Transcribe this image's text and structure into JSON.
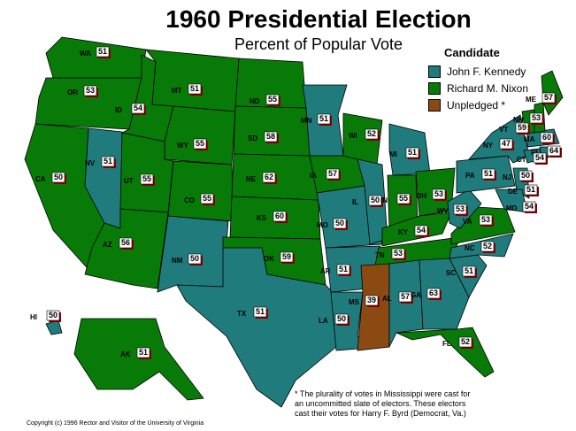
{
  "title": "1960 Presidential Election",
  "subtitle": "Percent of Popular Vote",
  "legend": {
    "heading": "Candidate",
    "items": [
      {
        "label": "John F. Kennedy",
        "color": "#1f7b7c"
      },
      {
        "label": "Richard M. Nixon",
        "color": "#087a08"
      },
      {
        "label": "Unpledged  *",
        "color": "#8b4a12"
      }
    ]
  },
  "colors": {
    "kennedy": "#1f7b7c",
    "nixon": "#087a08",
    "unpledged": "#8b4a12",
    "ocean": "#ffffff"
  },
  "states": [
    {
      "abbr": "WA",
      "value": "51",
      "winner": "nixon"
    },
    {
      "abbr": "OR",
      "value": "53",
      "winner": "nixon"
    },
    {
      "abbr": "CA",
      "value": "50",
      "winner": "nixon"
    },
    {
      "abbr": "NV",
      "value": "51",
      "winner": "kennedy"
    },
    {
      "abbr": "ID",
      "value": "54",
      "winner": "nixon"
    },
    {
      "abbr": "MT",
      "value": "51",
      "winner": "nixon"
    },
    {
      "abbr": "WY",
      "value": "55",
      "winner": "nixon"
    },
    {
      "abbr": "UT",
      "value": "55",
      "winner": "nixon"
    },
    {
      "abbr": "AZ",
      "value": "56",
      "winner": "nixon"
    },
    {
      "abbr": "CO",
      "value": "55",
      "winner": "nixon"
    },
    {
      "abbr": "NM",
      "value": "50",
      "winner": "kennedy"
    },
    {
      "abbr": "ND",
      "value": "55",
      "winner": "nixon"
    },
    {
      "abbr": "SD",
      "value": "58",
      "winner": "nixon"
    },
    {
      "abbr": "NE",
      "value": "62",
      "winner": "nixon"
    },
    {
      "abbr": "KS",
      "value": "60",
      "winner": "nixon"
    },
    {
      "abbr": "OK",
      "value": "59",
      "winner": "nixon"
    },
    {
      "abbr": "TX",
      "value": "51",
      "winner": "kennedy"
    },
    {
      "abbr": "MN",
      "value": "51",
      "winner": "kennedy"
    },
    {
      "abbr": "IA",
      "value": "57",
      "winner": "nixon"
    },
    {
      "abbr": "MO",
      "value": "50",
      "winner": "kennedy"
    },
    {
      "abbr": "AR",
      "value": "51",
      "winner": "kennedy"
    },
    {
      "abbr": "LA",
      "value": "50",
      "winner": "kennedy"
    },
    {
      "abbr": "WI",
      "value": "52",
      "winner": "nixon"
    },
    {
      "abbr": "IL",
      "value": "50",
      "winner": "kennedy"
    },
    {
      "abbr": "MI",
      "value": "51",
      "winner": "kennedy"
    },
    {
      "abbr": "IN",
      "value": "55",
      "winner": "nixon"
    },
    {
      "abbr": "OH",
      "value": "53",
      "winner": "nixon"
    },
    {
      "abbr": "KY",
      "value": "54",
      "winner": "nixon"
    },
    {
      "abbr": "TN",
      "value": "53",
      "winner": "nixon"
    },
    {
      "abbr": "MS",
      "value": "39",
      "winner": "unpledged"
    },
    {
      "abbr": "AL",
      "value": "57",
      "winner": "kennedy"
    },
    {
      "abbr": "GA",
      "value": "63",
      "winner": "kennedy"
    },
    {
      "abbr": "FL",
      "value": "52",
      "winner": "nixon"
    },
    {
      "abbr": "SC",
      "value": "51",
      "winner": "kennedy"
    },
    {
      "abbr": "NC",
      "value": "52",
      "winner": "kennedy"
    },
    {
      "abbr": "VA",
      "value": "53",
      "winner": "nixon"
    },
    {
      "abbr": "WV",
      "value": "53",
      "winner": "kennedy"
    },
    {
      "abbr": "PA",
      "value": "51",
      "winner": "kennedy"
    },
    {
      "abbr": "NY",
      "value": "47",
      "winner": "kennedy"
    },
    {
      "abbr": "VT",
      "value": "59",
      "winner": "nixon"
    },
    {
      "abbr": "NH",
      "value": "53",
      "winner": "nixon"
    },
    {
      "abbr": "ME",
      "value": "57",
      "winner": "nixon"
    },
    {
      "abbr": "MA",
      "value": "60",
      "winner": "kennedy"
    },
    {
      "abbr": "RI",
      "value": "64",
      "winner": "kennedy"
    },
    {
      "abbr": "CT",
      "value": "54",
      "winner": "kennedy"
    },
    {
      "abbr": "NJ",
      "value": "50",
      "winner": "kennedy"
    },
    {
      "abbr": "DE",
      "value": "51",
      "winner": "kennedy"
    },
    {
      "abbr": "MD",
      "value": "54",
      "winner": "kennedy"
    },
    {
      "abbr": "AK",
      "value": "51",
      "winner": "nixon"
    },
    {
      "abbr": "HI",
      "value": "50",
      "winner": "kennedy"
    }
  ],
  "footnote": "*  The plurality of votes in Mississippi were cast for an uncommitted slate of electors.  These electors cast their votes for Harry F. Byrd (Democrat, Va.)",
  "copyright": "Copyright (c) 1996 Rector and Visitor of the University of Virginia"
}
